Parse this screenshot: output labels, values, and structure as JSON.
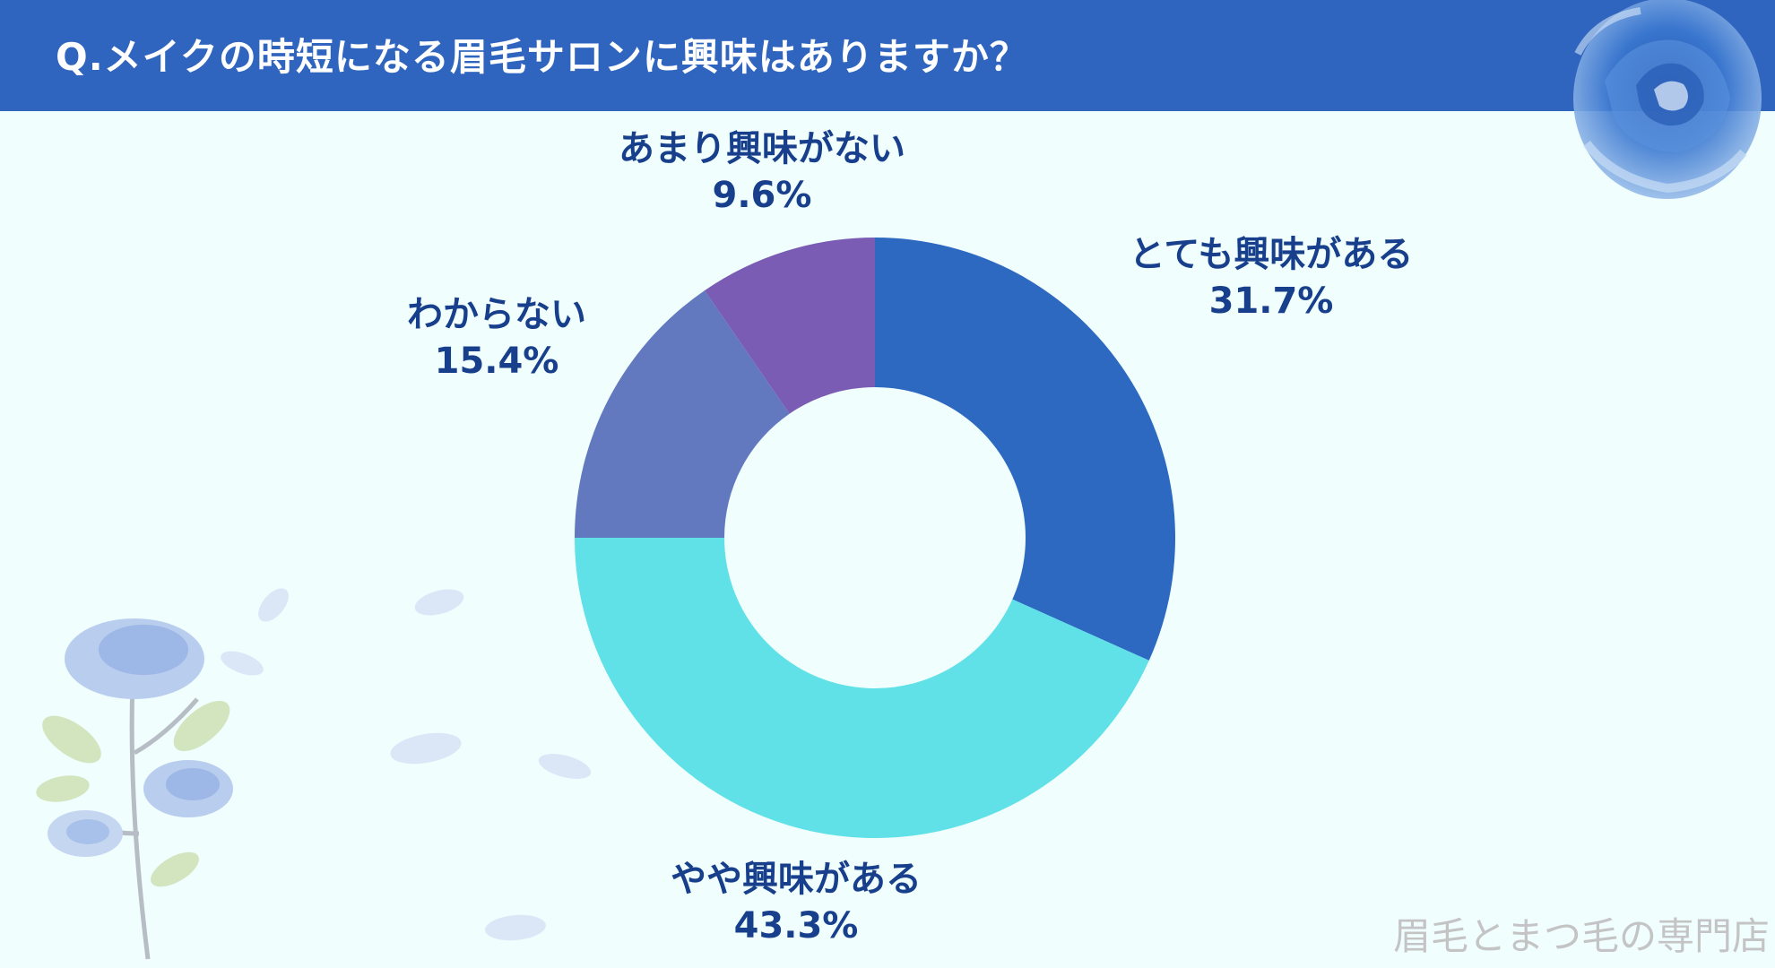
{
  "title": "Q.メイクの時短になる眉毛サロンに興味はありますか？",
  "watermark": "眉毛とまつ毛の専門店",
  "colors": {
    "header": "#2F65BF",
    "background": "#F0FEFE",
    "label_text": "#173F8C"
  },
  "chart_data": {
    "type": "pie",
    "donut": true,
    "start_angle_deg": 0,
    "direction": "clockwise",
    "slices": [
      {
        "label": "とても興味がある",
        "value": 31.7,
        "display": "31.7%",
        "color": "#2D68C1"
      },
      {
        "label": "やや興味がある",
        "value": 43.3,
        "display": "43.3%",
        "color": "#5FE1E7"
      },
      {
        "label": "わからない",
        "value": 15.4,
        "display": "15.4%",
        "color": "#6279C0"
      },
      {
        "label": "あまり興味がない",
        "value": 9.6,
        "display": "9.6%",
        "color": "#7B5CB4"
      }
    ]
  }
}
